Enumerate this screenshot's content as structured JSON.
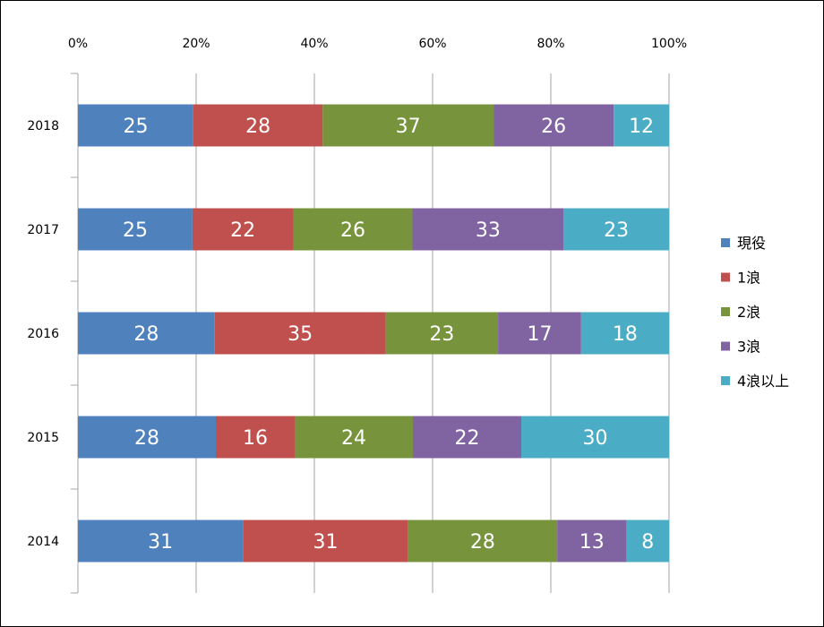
{
  "chart_data": {
    "type": "bar",
    "orientation": "horizontal",
    "stacked": "percent",
    "title": "",
    "xlabel": "",
    "ylabel": "",
    "xlim": [
      0,
      100
    ],
    "x_ticks": [
      "0%",
      "20%",
      "40%",
      "60%",
      "80%",
      "100%"
    ],
    "categories": [
      "2018",
      "2017",
      "2016",
      "2015",
      "2014"
    ],
    "series": [
      {
        "name": "現役",
        "color": "#4f81bd",
        "values": [
          25,
          25,
          28,
          28,
          31
        ]
      },
      {
        "name": "1浪",
        "color": "#c0504d",
        "values": [
          28,
          22,
          35,
          16,
          31
        ]
      },
      {
        "name": "2浪",
        "color": "#77933c",
        "values": [
          37,
          26,
          23,
          24,
          28
        ]
      },
      {
        "name": "3浪",
        "color": "#8064a2",
        "values": [
          26,
          33,
          17,
          22,
          13
        ]
      },
      {
        "name": "4浪以上",
        "color": "#4bacc6",
        "values": [
          12,
          23,
          18,
          30,
          8
        ]
      }
    ],
    "legend_position": "right",
    "grid": true
  }
}
